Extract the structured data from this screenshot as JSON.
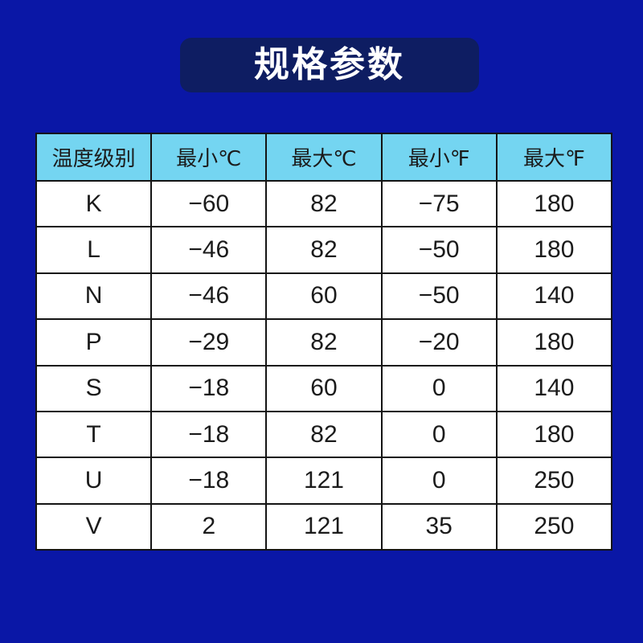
{
  "page": {
    "background_color": "#0a17a6"
  },
  "banner": {
    "title": "规格参数",
    "background_color": "#0e1d62",
    "text_color": "#ffffff"
  },
  "table": {
    "header_background": "#74d5f1",
    "body_background": "#ffffff",
    "border_color": "#141414",
    "columns": [
      "温度级别",
      "最小℃",
      "最大℃",
      "最小℉",
      "最大℉"
    ],
    "rows": [
      [
        "K",
        "−60",
        "82",
        "−75",
        "180"
      ],
      [
        "L",
        "−46",
        "82",
        "−50",
        "180"
      ],
      [
        "N",
        "−46",
        "60",
        "−50",
        "140"
      ],
      [
        "P",
        "−29",
        "82",
        "−20",
        "180"
      ],
      [
        "S",
        "−18",
        "60",
        "0",
        "140"
      ],
      [
        "T",
        "−18",
        "82",
        "0",
        "180"
      ],
      [
        "U",
        "−18",
        "121",
        "0",
        "250"
      ],
      [
        "V",
        "2",
        "121",
        "35",
        "250"
      ]
    ]
  }
}
